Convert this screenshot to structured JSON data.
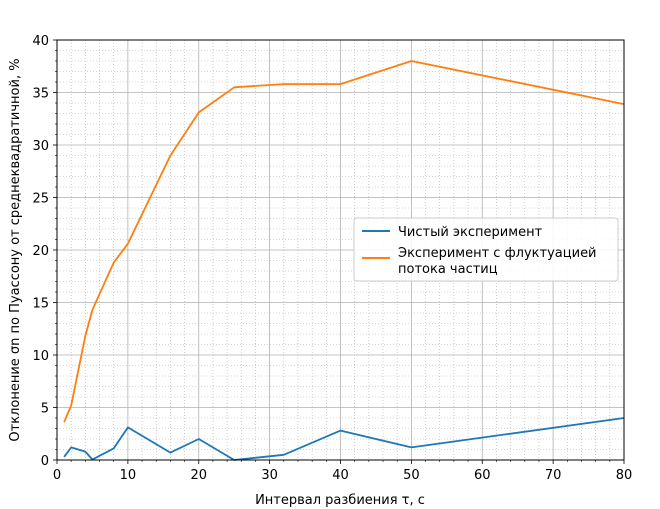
{
  "chart_data": {
    "type": "line",
    "xlabel": "Интервал разбиения τ, с",
    "ylabel": "Отклонение σn по Пуассону от среднеквадратичной, %",
    "xlim": [
      0,
      80
    ],
    "ylim": [
      0,
      40
    ],
    "xticks": [
      "0",
      "10",
      "20",
      "30",
      "40",
      "50",
      "60",
      "70",
      "80"
    ],
    "yticks": [
      "0",
      "5",
      "10",
      "15",
      "20",
      "25",
      "30",
      "35",
      "40"
    ],
    "x_major_step": 10,
    "y_major_step": 5,
    "x_minor_step": 2,
    "y_minor_step": 1,
    "grid": "major-and-minor",
    "legend_position": "center-right",
    "series": [
      {
        "name": "Чистый эксперимент",
        "name_lines": [
          "Чистый эксперимент"
        ],
        "color": "#1f77b4",
        "x": [
          1,
          2,
          4,
          5,
          8,
          10,
          16,
          20,
          25,
          32,
          40,
          50,
          80
        ],
        "y": [
          0.3,
          1.2,
          0.8,
          0.05,
          1.1,
          3.1,
          0.7,
          2.0,
          0.0,
          0.5,
          2.8,
          1.2,
          4.0
        ]
      },
      {
        "name": "Эксперимент с флуктуацией потока частиц",
        "name_lines": [
          "Эксперимент с флуктуацией",
          "потока частиц"
        ],
        "color": "#ff7f0e",
        "x": [
          1,
          2,
          4,
          5,
          8,
          10,
          16,
          20,
          25,
          32,
          40,
          50,
          80
        ],
        "y": [
          3.6,
          5.2,
          11.8,
          14.3,
          18.8,
          20.6,
          29.0,
          33.1,
          35.5,
          35.8,
          35.8,
          38.0,
          33.9
        ]
      }
    ]
  }
}
